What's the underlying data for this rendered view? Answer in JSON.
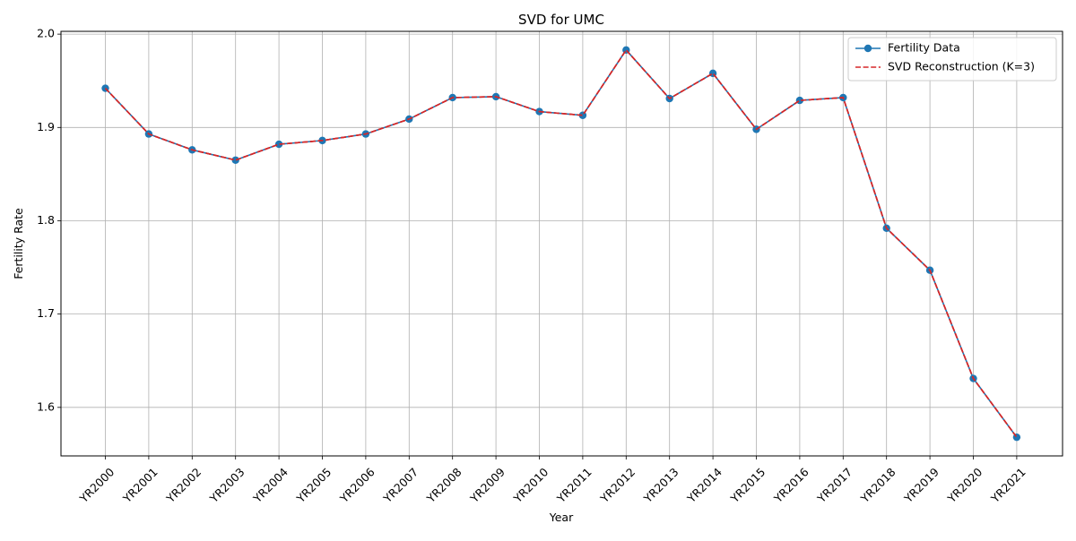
{
  "chart_data": {
    "type": "line",
    "title": "SVD for UMC",
    "xlabel": "Year",
    "ylabel": "Fertility Rate",
    "categories": [
      "YR2000",
      "YR2001",
      "YR2002",
      "YR2003",
      "YR2004",
      "YR2005",
      "YR2006",
      "YR2007",
      "YR2008",
      "YR2009",
      "YR2010",
      "YR2011",
      "YR2012",
      "YR2013",
      "YR2014",
      "YR2015",
      "YR2016",
      "YR2017",
      "YR2018",
      "YR2019",
      "YR2020",
      "YR2021"
    ],
    "ylim": [
      1.548,
      2.003
    ],
    "yticks": [
      1.6,
      1.7,
      1.8,
      1.9,
      2.0
    ],
    "ytick_labels": [
      "1.6",
      "1.7",
      "1.8",
      "1.9",
      "2.0"
    ],
    "grid": true,
    "legend_position": "upper right",
    "series": [
      {
        "name": "Fertility Data",
        "color": "#1f77b4",
        "style": "solid",
        "marker": "circle",
        "values": [
          1.942,
          1.893,
          1.876,
          1.865,
          1.882,
          1.886,
          1.893,
          1.909,
          1.932,
          1.933,
          1.917,
          1.913,
          1.983,
          1.931,
          1.958,
          1.898,
          1.929,
          1.932,
          1.792,
          1.747,
          1.631,
          1.568
        ]
      },
      {
        "name": "SVD Reconstruction (K=3)",
        "color": "#d62728",
        "style": "dashed",
        "marker": "none",
        "values": [
          1.942,
          1.893,
          1.876,
          1.865,
          1.882,
          1.886,
          1.893,
          1.909,
          1.932,
          1.933,
          1.917,
          1.913,
          1.983,
          1.931,
          1.958,
          1.898,
          1.929,
          1.932,
          1.792,
          1.747,
          1.631,
          1.568
        ]
      }
    ]
  }
}
